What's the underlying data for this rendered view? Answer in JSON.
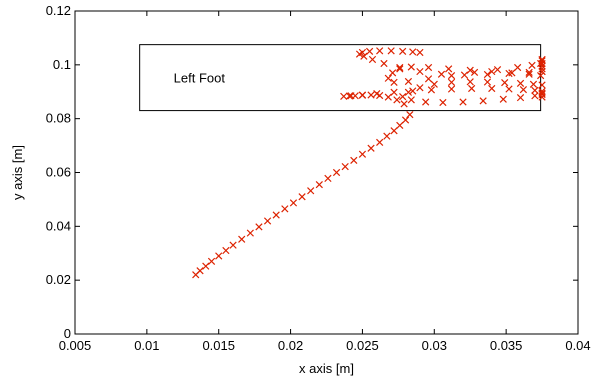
{
  "chart_data": {
    "type": "scatter",
    "xlabel": "x axis [m]",
    "ylabel": "y axis [m]",
    "xlim": [
      0.005,
      0.04
    ],
    "ylim": [
      0,
      0.12
    ],
    "x_ticks": [
      0.005,
      0.01,
      0.015,
      0.02,
      0.025,
      0.03,
      0.035,
      0.04
    ],
    "x_tick_labels": [
      "0.005",
      "0.01",
      "0.015",
      "0.02",
      "0.025",
      "0.03",
      "0.035",
      "0.04"
    ],
    "y_ticks": [
      0,
      0.02,
      0.04,
      0.06,
      0.08,
      0.1,
      0.12
    ],
    "y_tick_labels": [
      "0",
      "0.02",
      "0.04",
      "0.06",
      "0.08",
      "0.1",
      "0.12"
    ],
    "grid": false,
    "marker": "x",
    "marker_color": "#dd2200",
    "annotation": {
      "label": "Left Foot",
      "rect": {
        "x0": 0.0095,
        "x1": 0.0374,
        "y0": 0.083,
        "y1": 0.1075
      }
    },
    "series": [
      {
        "x": [
          0.0134,
          0.0137,
          0.0141,
          0.0145,
          0.015,
          0.0155,
          0.016,
          0.0166,
          0.0172,
          0.0178,
          0.0184,
          0.019,
          0.0196,
          0.0202,
          0.0208,
          0.0214,
          0.022,
          0.0226,
          0.0232,
          0.0238,
          0.0244,
          0.025,
          0.0256,
          0.0262,
          0.0267,
          0.0272,
          0.0276,
          0.028,
          0.0283,
          0.0279,
          0.0274,
          0.0268,
          0.0262,
          0.0256,
          0.025,
          0.0245,
          0.0241,
          0.0237,
          0.0242,
          0.025,
          0.026,
          0.0272,
          0.0285,
          0.0298,
          0.0312,
          0.0326,
          0.034,
          0.0352,
          0.0362,
          0.037,
          0.0375,
          0.0375,
          0.0369,
          0.036,
          0.0349,
          0.0337,
          0.0325,
          0.0312,
          0.03,
          0.029,
          0.0282,
          0.0278,
          0.0284,
          0.0294,
          0.0306,
          0.032,
          0.0334,
          0.0348,
          0.036,
          0.037,
          0.0375,
          0.0374,
          0.0366,
          0.0354,
          0.034,
          0.0325,
          0.031,
          0.0296,
          0.0284,
          0.0276,
          0.0271,
          0.0268,
          0.0272,
          0.0282,
          0.0296,
          0.0312,
          0.0328,
          0.0344,
          0.0358,
          0.0368,
          0.0374,
          0.0375,
          0.0366,
          0.0352,
          0.0337,
          0.0321,
          0.0305,
          0.029,
          0.0276,
          0.0265,
          0.0257,
          0.0251,
          0.0248,
          0.025,
          0.0255,
          0.0262,
          0.027,
          0.0278,
          0.0285,
          0.029,
          0.0375,
          0.0375,
          0.0375,
          0.0375,
          0.0375,
          0.0375,
          0.0375,
          0.0375
        ],
        "y": [
          0.022,
          0.0235,
          0.0252,
          0.027,
          0.029,
          0.031,
          0.033,
          0.0352,
          0.0375,
          0.0398,
          0.042,
          0.0442,
          0.0465,
          0.0487,
          0.051,
          0.0532,
          0.0555,
          0.0578,
          0.06,
          0.0622,
          0.0645,
          0.0668,
          0.069,
          0.0712,
          0.0735,
          0.0755,
          0.0775,
          0.0795,
          0.0815,
          0.0855,
          0.087,
          0.088,
          0.0886,
          0.0888,
          0.0887,
          0.0885,
          0.0884,
          0.0883,
          0.0885,
          0.0888,
          0.0893,
          0.0898,
          0.0903,
          0.0907,
          0.091,
          0.0912,
          0.0912,
          0.091,
          0.0908,
          0.0905,
          0.0902,
          0.0925,
          0.0928,
          0.0931,
          0.0934,
          0.0936,
          0.0937,
          0.0935,
          0.0928,
          0.0915,
          0.0898,
          0.0882,
          0.087,
          0.0862,
          0.086,
          0.0862,
          0.0866,
          0.0872,
          0.0878,
          0.0885,
          0.089,
          0.096,
          0.0965,
          0.097,
          0.0975,
          0.098,
          0.0985,
          0.099,
          0.0992,
          0.0985,
          0.097,
          0.095,
          0.0935,
          0.0938,
          0.0948,
          0.096,
          0.0972,
          0.0982,
          0.099,
          0.0998,
          0.1005,
          0.0975,
          0.0972,
          0.0968,
          0.0964,
          0.0962,
          0.0965,
          0.0975,
          0.099,
          0.1005,
          0.102,
          0.1032,
          0.104,
          0.1046,
          0.105,
          0.1052,
          0.1052,
          0.105,
          0.1048,
          0.1046,
          0.0975,
          0.0985,
          0.0995,
          0.1005,
          0.1015,
          0.102,
          0.088,
          0.0895
        ]
      }
    ]
  }
}
